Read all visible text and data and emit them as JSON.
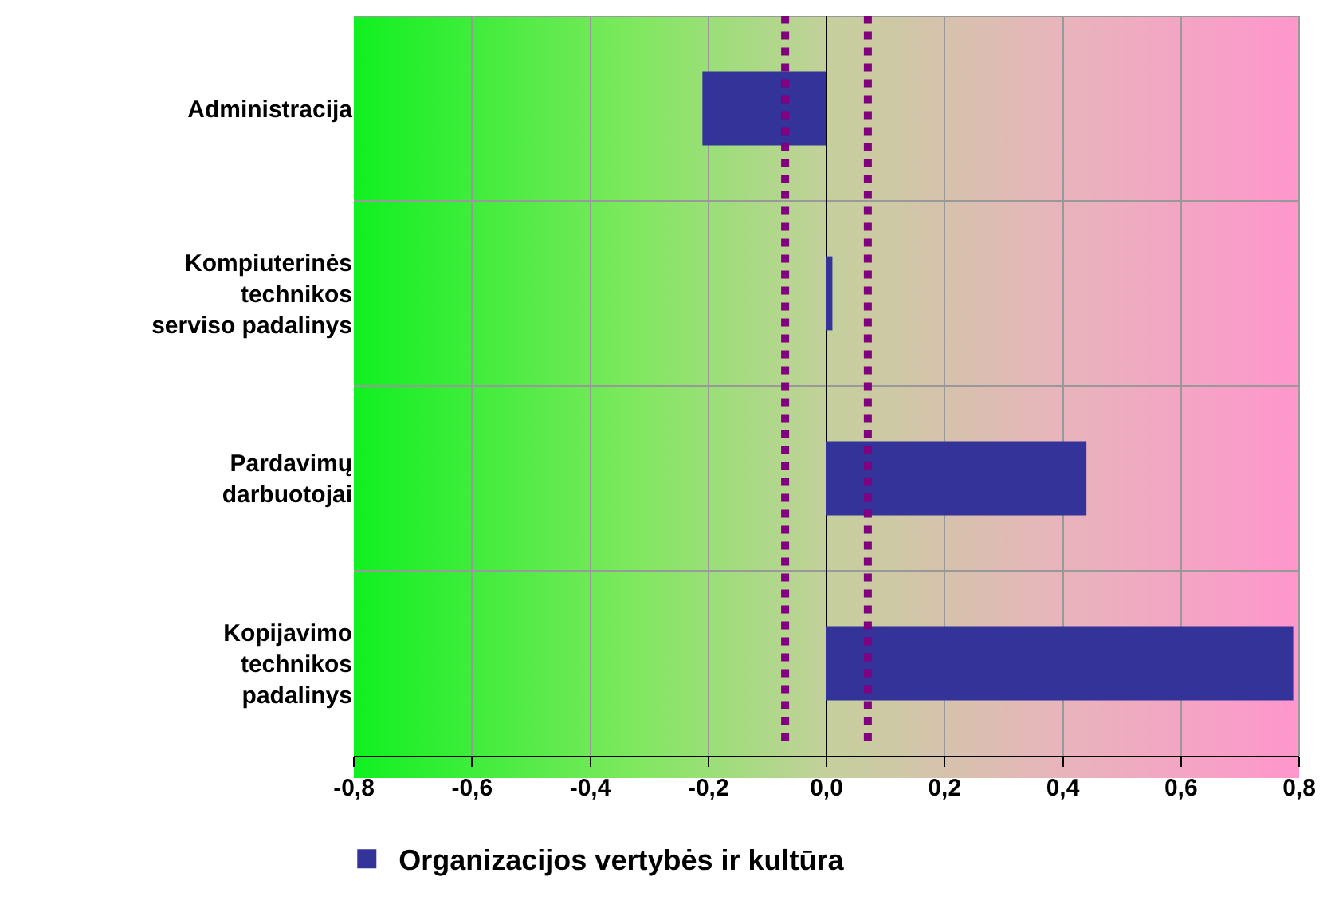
{
  "chart_data": {
    "type": "bar",
    "orientation": "horizontal",
    "categories": [
      "Administracija",
      "Kompiuterinės\ntechnikos\nserviso padalinys",
      "Pardavimų\ndarbuotojai",
      "Kopijavimo\ntechnikos\npadalinys"
    ],
    "series": [
      {
        "name": "Organizacijos vertybės ir kultūra",
        "color": "#333399",
        "values": [
          -0.21,
          0.01,
          0.44,
          0.79
        ]
      }
    ],
    "xlim": [
      -0.8,
      0.8
    ],
    "xticks": [
      {
        "value": -0.8,
        "label": "-0,8"
      },
      {
        "value": -0.6,
        "label": "-0,6"
      },
      {
        "value": -0.4,
        "label": "-0,4"
      },
      {
        "value": -0.2,
        "label": "-0,2"
      },
      {
        "value": 0,
        "label": "0,0"
      },
      {
        "value": 0.2,
        "label": "0,2"
      },
      {
        "value": 0.4,
        "label": "0,4"
      },
      {
        "value": 0.6,
        "label": "0,6"
      },
      {
        "value": 0.8,
        "label": "0,8"
      }
    ],
    "ref_lines": [
      {
        "axis": "x",
        "value": -0.07,
        "color": "#800080",
        "line_style": "dotted"
      },
      {
        "axis": "x",
        "value": 0.07,
        "color": "#800080",
        "line_style": "dotted"
      }
    ],
    "grid": true,
    "legend": "bottom left"
  }
}
